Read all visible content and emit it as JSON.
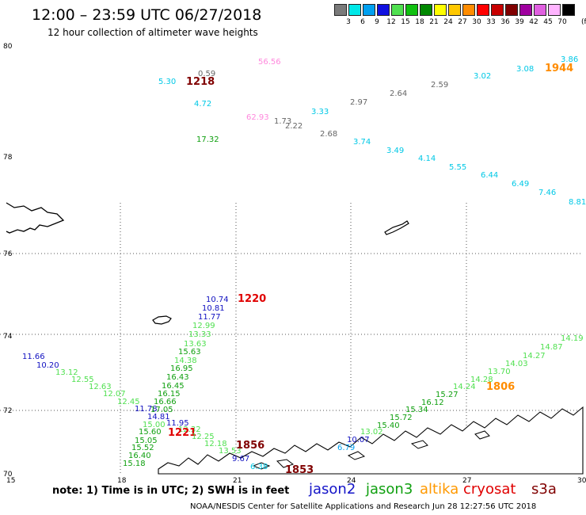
{
  "header": {
    "title": "12:00 – 23:59 UTC 06/27/2018",
    "subtitle": "12 hour collection of altimeter wave heights"
  },
  "legend_scale": {
    "unit": "(ft)",
    "bins": [
      {
        "label": "3",
        "color": "#7a7a7a"
      },
      {
        "label": "6",
        "color": "#00e8e8"
      },
      {
        "label": "9",
        "color": "#00a0f0"
      },
      {
        "label": "12",
        "color": "#1010e0"
      },
      {
        "label": "15",
        "color": "#50e050"
      },
      {
        "label": "18",
        "color": "#10c010"
      },
      {
        "label": "21",
        "color": "#008800"
      },
      {
        "label": "24",
        "color": "#ffff00"
      },
      {
        "label": "27",
        "color": "#ffc800"
      },
      {
        "label": "30",
        "color": "#ff8c00"
      },
      {
        "label": "33",
        "color": "#ff0000"
      },
      {
        "label": "36",
        "color": "#c80000"
      },
      {
        "label": "39",
        "color": "#800000"
      },
      {
        "label": "42",
        "color": "#a000a0"
      },
      {
        "label": "45",
        "color": "#e060e0"
      },
      {
        "label": "70",
        "color": "#ffb4ff"
      },
      {
        "label": "",
        "color": "#000000"
      }
    ]
  },
  "axes": {
    "y_labels": [
      "80",
      "78",
      "76",
      "74",
      "72",
      "70"
    ],
    "x_labels": [
      "15",
      "18",
      "21",
      "24",
      "27",
      "30"
    ]
  },
  "observations": [
    {
      "text": "5.30",
      "color": "#00c8e6"
    },
    {
      "text": "0.59",
      "color": "#666666"
    },
    {
      "text": "1218",
      "color": "#800000",
      "bold": true
    },
    {
      "text": "56.56",
      "color": "#ff88dd"
    },
    {
      "text": "3.86",
      "color": "#00c8e6"
    },
    {
      "text": "3.08",
      "color": "#00c8e6"
    },
    {
      "text": "1944",
      "color": "#ff8c00",
      "bold": true
    },
    {
      "text": "3.02",
      "color": "#00c8e6"
    },
    {
      "text": "2.59",
      "color": "#666666"
    },
    {
      "text": "2.64",
      "color": "#666666"
    },
    {
      "text": "2.97",
      "color": "#666666"
    },
    {
      "text": "4.72",
      "color": "#00c8e6"
    },
    {
      "text": "3.33",
      "color": "#00c8e6"
    },
    {
      "text": "62.93",
      "color": "#ff88dd"
    },
    {
      "text": "1.73",
      "color": "#666666"
    },
    {
      "text": "2.22",
      "color": "#666666"
    },
    {
      "text": "2.68",
      "color": "#666666"
    },
    {
      "text": "17.32",
      "color": "#10a010"
    },
    {
      "text": "3.74",
      "color": "#00c8e6"
    },
    {
      "text": "3.49",
      "color": "#00c8e6"
    },
    {
      "text": "4.14",
      "color": "#00c8e6"
    },
    {
      "text": "5.55",
      "color": "#00c8e6"
    },
    {
      "text": "6.44",
      "color": "#00c8e6"
    },
    {
      "text": "6.49",
      "color": "#00c8e6"
    },
    {
      "text": "7.46",
      "color": "#00c8e6"
    },
    {
      "text": "8.81",
      "color": "#00c8e6"
    },
    {
      "text": "10.74",
      "color": "#1010c0"
    },
    {
      "text": "1220",
      "color": "#e00000",
      "bold": true
    },
    {
      "text": "10.81",
      "color": "#1010c0"
    },
    {
      "text": "11.77",
      "color": "#1010c0"
    },
    {
      "text": "12.99",
      "color": "#50e050"
    },
    {
      "text": "13.33",
      "color": "#50e050"
    },
    {
      "text": "13.63",
      "color": "#50e050"
    },
    {
      "text": "15.63",
      "color": "#10a010"
    },
    {
      "text": "14.38",
      "color": "#50e050"
    },
    {
      "text": "16.95",
      "color": "#10a010"
    },
    {
      "text": "16.43",
      "color": "#10a010"
    },
    {
      "text": "16.45",
      "color": "#10a010"
    },
    {
      "text": "16.15",
      "color": "#10a010"
    },
    {
      "text": "16.66",
      "color": "#10a010"
    },
    {
      "text": "11.66",
      "color": "#1010c0"
    },
    {
      "text": "10.20",
      "color": "#1010c0"
    },
    {
      "text": "13.12",
      "color": "#50e050"
    },
    {
      "text": "12.55",
      "color": "#50e050"
    },
    {
      "text": "12.63",
      "color": "#50e050"
    },
    {
      "text": "12.07",
      "color": "#50e050"
    },
    {
      "text": "12.45",
      "color": "#50e050"
    },
    {
      "text": "11.78",
      "color": "#1010c0"
    },
    {
      "text": "17.05",
      "color": "#10a010"
    },
    {
      "text": "14.81",
      "color": "#1010c0"
    },
    {
      "text": "11.95",
      "color": "#1010c0"
    },
    {
      "text": "15.00",
      "color": "#50e050"
    },
    {
      "text": "15.60",
      "color": "#10a010"
    },
    {
      "text": "12.32",
      "color": "#50e050"
    },
    {
      "text": "1221",
      "color": "#e00000",
      "bold": true
    },
    {
      "text": "15.05",
      "color": "#10a010"
    },
    {
      "text": "12.25",
      "color": "#50e050"
    },
    {
      "text": "15.52",
      "color": "#10a010"
    },
    {
      "text": "12.18",
      "color": "#50e050"
    },
    {
      "text": "16.40",
      "color": "#10a010"
    },
    {
      "text": "13.53",
      "color": "#50e050"
    },
    {
      "text": "15.18",
      "color": "#10a010"
    },
    {
      "text": "1856",
      "color": "#800000",
      "bold": true
    },
    {
      "text": "9.67",
      "color": "#1010c0"
    },
    {
      "text": "6.38",
      "color": "#00c8e6"
    },
    {
      "text": "1853",
      "color": "#800000",
      "bold": true
    },
    {
      "text": "10.07",
      "color": "#1010c0"
    },
    {
      "text": "6.79",
      "color": "#00a0f0"
    },
    {
      "text": "13.02",
      "color": "#50e050"
    },
    {
      "text": "15.40",
      "color": "#10a010"
    },
    {
      "text": "15.72",
      "color": "#10a010"
    },
    {
      "text": "15.34",
      "color": "#10a010"
    },
    {
      "text": "16.12",
      "color": "#10a010"
    },
    {
      "text": "15.27",
      "color": "#10a010"
    },
    {
      "text": "14.24",
      "color": "#50e050"
    },
    {
      "text": "1806",
      "color": "#ff8c00",
      "bold": true
    },
    {
      "text": "14.28",
      "color": "#50e050"
    },
    {
      "text": "13.70",
      "color": "#50e050"
    },
    {
      "text": "14.03",
      "color": "#50e050"
    },
    {
      "text": "14.27",
      "color": "#50e050"
    },
    {
      "text": "14.87",
      "color": "#50e050"
    },
    {
      "text": "14.19",
      "color": "#50e050"
    }
  ],
  "note": "note: 1) Time is in UTC; 2) SWH is in feet",
  "satellites": [
    {
      "name": "jason2",
      "color": "#1414c8"
    },
    {
      "name": "jason3",
      "color": "#10a010"
    },
    {
      "name": "altika",
      "color": "#ff9900"
    },
    {
      "name": "cryosat",
      "color": "#e00000"
    },
    {
      "name": "s3a",
      "color": "#800000"
    }
  ],
  "footer": "NOAA/NESDIS Center for Satellite Applications and Research    Jun 28 12:27:56 UTC 2018"
}
